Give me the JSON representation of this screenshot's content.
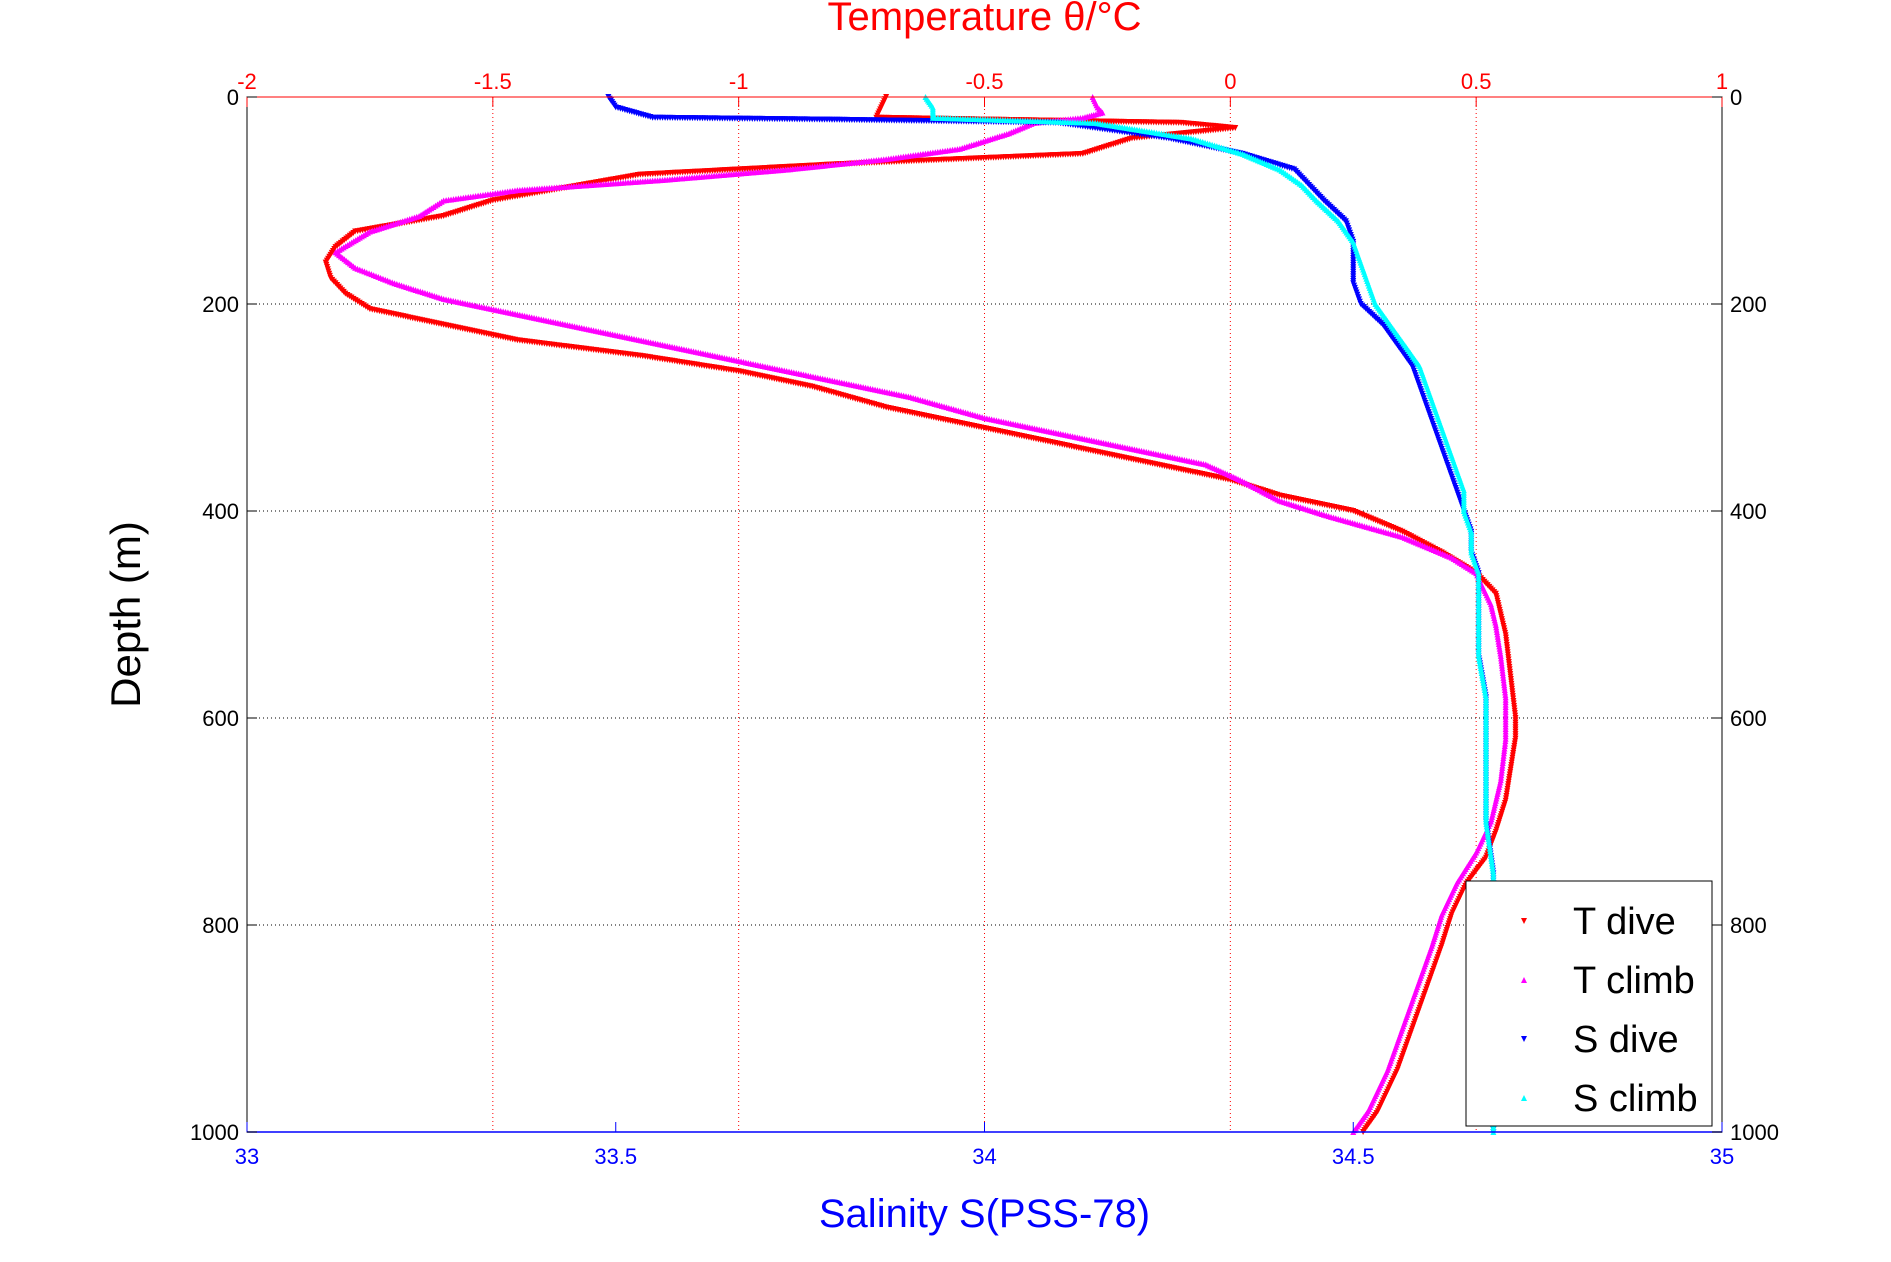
{
  "chart_data": {
    "type": "scatter",
    "top_axis": {
      "label": "Temperature θ/°C",
      "range": [
        -2,
        1
      ],
      "ticks": [
        "-2",
        "-1.5",
        "-1",
        "-0.5",
        "0",
        "0.5",
        "1"
      ],
      "color": "#ff0000"
    },
    "bottom_axis": {
      "label": "Salinity S(PSS-78)",
      "range": [
        33,
        35
      ],
      "ticks": [
        "33",
        "33.5",
        "34",
        "34.5",
        "35"
      ],
      "color": "#0000ff"
    },
    "y_axis": {
      "label": "Depth (m)",
      "range": [
        0,
        1000
      ],
      "reversed": true,
      "ticks": [
        "0",
        "200",
        "400",
        "600",
        "800",
        "1000"
      ]
    },
    "grid": true,
    "legend_position": "bottom-right",
    "series": [
      {
        "name": "T dive",
        "axis": "temperature",
        "color": "#ff0000",
        "marker": "triangle-down",
        "points": [
          [
            -0.7,
            0
          ],
          [
            -0.71,
            10
          ],
          [
            -0.72,
            20
          ],
          [
            -0.1,
            25
          ],
          [
            0.01,
            30
          ],
          [
            -0.2,
            40
          ],
          [
            -0.3,
            55
          ],
          [
            -0.8,
            65
          ],
          [
            -1.2,
            75
          ],
          [
            -1.5,
            100
          ],
          [
            -1.6,
            115
          ],
          [
            -1.78,
            130
          ],
          [
            -1.82,
            145
          ],
          [
            -1.84,
            160
          ],
          [
            -1.83,
            175
          ],
          [
            -1.8,
            190
          ],
          [
            -1.75,
            205
          ],
          [
            -1.6,
            220
          ],
          [
            -1.45,
            235
          ],
          [
            -1.2,
            250
          ],
          [
            -1.0,
            265
          ],
          [
            -0.85,
            280
          ],
          [
            -0.7,
            300
          ],
          [
            -0.55,
            315
          ],
          [
            -0.4,
            330
          ],
          [
            -0.25,
            345
          ],
          [
            -0.1,
            360
          ],
          [
            0,
            370
          ],
          [
            0.1,
            385
          ],
          [
            0.25,
            400
          ],
          [
            0.35,
            420
          ],
          [
            0.43,
            440
          ],
          [
            0.5,
            460
          ],
          [
            0.54,
            480
          ],
          [
            0.55,
            500
          ],
          [
            0.56,
            520
          ],
          [
            0.57,
            560
          ],
          [
            0.58,
            600
          ],
          [
            0.58,
            620
          ],
          [
            0.57,
            650
          ],
          [
            0.56,
            680
          ],
          [
            0.54,
            710
          ],
          [
            0.52,
            735
          ],
          [
            0.48,
            760
          ],
          [
            0.45,
            790
          ],
          [
            0.43,
            820
          ],
          [
            0.4,
            860
          ],
          [
            0.37,
            900
          ],
          [
            0.34,
            940
          ],
          [
            0.3,
            980
          ],
          [
            0.27,
            1000
          ]
        ]
      },
      {
        "name": "T climb",
        "axis": "temperature",
        "color": "#ff00ff",
        "marker": "triangle-up",
        "points": [
          [
            -0.28,
            0
          ],
          [
            -0.27,
            10
          ],
          [
            -0.26,
            15
          ],
          [
            -0.3,
            20
          ],
          [
            -0.4,
            25
          ],
          [
            -0.45,
            35
          ],
          [
            -0.55,
            50
          ],
          [
            -0.7,
            60
          ],
          [
            -0.9,
            70
          ],
          [
            -1.15,
            80
          ],
          [
            -1.45,
            90
          ],
          [
            -1.6,
            100
          ],
          [
            -1.65,
            115
          ],
          [
            -1.75,
            130
          ],
          [
            -1.82,
            150
          ],
          [
            -1.78,
            165
          ],
          [
            -1.7,
            180
          ],
          [
            -1.6,
            195
          ],
          [
            -1.45,
            210
          ],
          [
            -1.3,
            225
          ],
          [
            -1.15,
            240
          ],
          [
            -1.0,
            255
          ],
          [
            -0.8,
            275
          ],
          [
            -0.65,
            290
          ],
          [
            -0.5,
            310
          ],
          [
            -0.35,
            325
          ],
          [
            -0.2,
            340
          ],
          [
            -0.05,
            355
          ],
          [
            0.02,
            370
          ],
          [
            0.1,
            390
          ],
          [
            0.2,
            405
          ],
          [
            0.35,
            425
          ],
          [
            0.45,
            445
          ],
          [
            0.5,
            460
          ],
          [
            0.53,
            490
          ],
          [
            0.54,
            510
          ],
          [
            0.55,
            540
          ],
          [
            0.56,
            580
          ],
          [
            0.56,
            620
          ],
          [
            0.55,
            660
          ],
          [
            0.53,
            700
          ],
          [
            0.5,
            730
          ],
          [
            0.46,
            760
          ],
          [
            0.43,
            790
          ],
          [
            0.41,
            820
          ],
          [
            0.38,
            860
          ],
          [
            0.35,
            900
          ],
          [
            0.32,
            940
          ],
          [
            0.28,
            980
          ],
          [
            0.25,
            1000
          ]
        ]
      },
      {
        "name": "S dive",
        "axis": "salinity",
        "color": "#0000ff",
        "marker": "triangle-down",
        "points": [
          [
            33.49,
            0
          ],
          [
            33.5,
            10
          ],
          [
            33.55,
            20
          ],
          [
            33.8,
            22
          ],
          [
            34.1,
            25
          ],
          [
            34.25,
            40
          ],
          [
            34.35,
            55
          ],
          [
            34.42,
            70
          ],
          [
            34.44,
            85
          ],
          [
            34.46,
            100
          ],
          [
            34.49,
            120
          ],
          [
            34.5,
            140
          ],
          [
            34.5,
            160
          ],
          [
            34.5,
            180
          ],
          [
            34.51,
            200
          ],
          [
            34.54,
            220
          ],
          [
            34.56,
            240
          ],
          [
            34.58,
            260
          ],
          [
            34.59,
            280
          ],
          [
            34.6,
            300
          ],
          [
            34.61,
            320
          ],
          [
            34.62,
            340
          ],
          [
            34.63,
            360
          ],
          [
            34.64,
            380
          ],
          [
            34.65,
            400
          ],
          [
            34.66,
            420
          ],
          [
            34.66,
            440
          ],
          [
            34.67,
            460
          ],
          [
            34.67,
            500
          ],
          [
            34.67,
            540
          ],
          [
            34.68,
            580
          ],
          [
            34.68,
            620
          ],
          [
            34.68,
            660
          ],
          [
            34.68,
            700
          ],
          [
            34.69,
            750
          ],
          [
            34.69,
            800
          ],
          [
            34.69,
            850
          ],
          [
            34.69,
            900
          ],
          [
            34.69,
            950
          ],
          [
            34.69,
            1000
          ]
        ]
      },
      {
        "name": "S climb",
        "axis": "salinity",
        "color": "#00ffff",
        "marker": "triangle-up",
        "points": [
          [
            33.92,
            0
          ],
          [
            33.93,
            10
          ],
          [
            33.93,
            20
          ],
          [
            34.15,
            25
          ],
          [
            34.28,
            40
          ],
          [
            34.35,
            55
          ],
          [
            34.4,
            70
          ],
          [
            34.43,
            85
          ],
          [
            34.45,
            100
          ],
          [
            34.48,
            120
          ],
          [
            34.5,
            140
          ],
          [
            34.51,
            160
          ],
          [
            34.52,
            180
          ],
          [
            34.53,
            200
          ],
          [
            34.55,
            220
          ],
          [
            34.57,
            240
          ],
          [
            34.59,
            260
          ],
          [
            34.6,
            280
          ],
          [
            34.61,
            300
          ],
          [
            34.62,
            320
          ],
          [
            34.63,
            340
          ],
          [
            34.64,
            360
          ],
          [
            34.65,
            380
          ],
          [
            34.65,
            400
          ],
          [
            34.66,
            420
          ],
          [
            34.66,
            440
          ],
          [
            34.67,
            460
          ],
          [
            34.67,
            500
          ],
          [
            34.67,
            540
          ],
          [
            34.68,
            580
          ],
          [
            34.68,
            620
          ],
          [
            34.68,
            660
          ],
          [
            34.68,
            700
          ],
          [
            34.69,
            750
          ],
          [
            34.69,
            800
          ],
          [
            34.69,
            850
          ],
          [
            34.69,
            900
          ],
          [
            34.69,
            950
          ],
          [
            34.69,
            1000
          ]
        ]
      }
    ]
  }
}
